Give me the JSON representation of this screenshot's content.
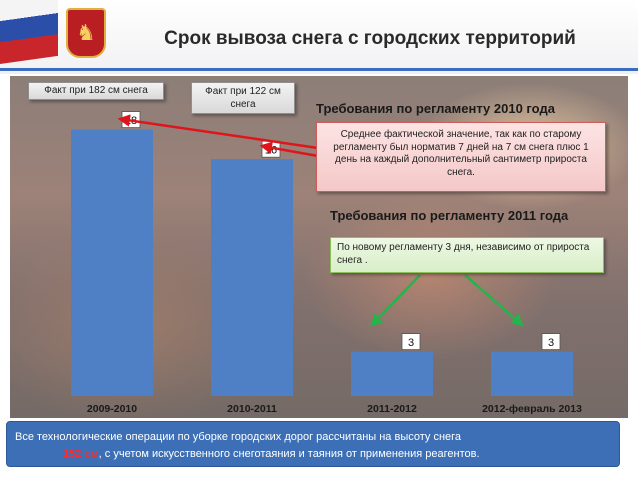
{
  "title": "Срок вывоза снега с городских территорий",
  "chart_data": {
    "type": "bar",
    "categories": [
      "2009-2010",
      "2010-2011",
      "2011-2012",
      "2012-февраль 2013"
    ],
    "values": [
      18,
      16,
      3,
      3
    ],
    "ylim": [
      0,
      20
    ],
    "grid": false,
    "color": "#4f7fc4"
  },
  "callouts": {
    "fact_182": "Факт при 182 см снега",
    "fact_122": "Факт при 122 см снега",
    "req_2010_heading": "Требования по регламенту 2010 года",
    "req_2010_text": "Среднее фактической значение, так как по старому регламенту был норматив  7 дней на 7 см снега плюс 1 день на каждый дополнительный сантиметр прироста снега.",
    "req_2011_heading": "Требования по  регламенту 2011 года",
    "req_2011_text": "По новому регламенту 3 дня, независимо от прироста снега ."
  },
  "footer": {
    "text_before": "Все технологические операции по уборке городских дорог рассчитаны на высоту снега ",
    "highlight": "152 см",
    "text_after": ", с учетом искусственного снеготаяния и таяния от применения реагентов."
  },
  "colors": {
    "bar": "#4f7fc4",
    "arrow_red": "#e0151b",
    "arrow_green": "#25b34a",
    "footer_bg": "#3c6fb6"
  }
}
